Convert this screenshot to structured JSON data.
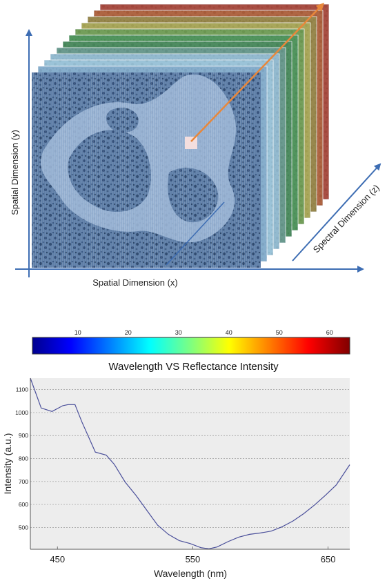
{
  "cube": {
    "label_y": "Spatial Dimension (y)",
    "label_x": "Spatial Dimension (x)",
    "label_z": "Spectral Dimension (z)",
    "layer_colors": [
      "#b8442e",
      "#c0602e",
      "#a48a3a",
      "#b9b04a",
      "#78a64a",
      "#4f9a4e",
      "#4a8f52",
      "#6ea08a",
      "#9ec7d8",
      "#a8d2e2",
      "#8fb8d4"
    ],
    "front_color": "#8faed0",
    "tissue_color": "#2e4a70",
    "arrow_orange": "#e8873a",
    "arrow_blue": "#3d6db3"
  },
  "colorbar": {
    "ticks": [
      "10",
      "20",
      "30",
      "40",
      "50",
      "60"
    ],
    "tick_values": [
      10,
      20,
      30,
      40,
      50,
      60
    ],
    "range": [
      1,
      64
    ]
  },
  "chart_data": {
    "type": "line",
    "title": "Wavelength VS Reflectance Intensity",
    "xlabel": "Wavelength (nm)",
    "ylabel": "Intensity (a.u.)",
    "xlim": [
      430,
      666
    ],
    "ylim": [
      405,
      1150
    ],
    "xticks": [
      450,
      550,
      650
    ],
    "yticks": [
      500,
      600,
      700,
      800,
      900,
      1000,
      1100
    ],
    "grid": "horizontal",
    "line_color": "#4a4f9a",
    "series": [
      {
        "x": [
          430,
          438,
          446,
          454,
          458,
          463,
          468,
          478,
          486,
          492,
          500,
          508,
          516,
          524,
          532,
          540,
          548,
          556,
          562,
          568,
          576,
          584,
          592,
          600,
          608,
          616,
          624,
          632,
          640,
          648,
          656,
          666
        ],
        "y": [
          1150,
          1020,
          1005,
          1030,
          1035,
          1035,
          960,
          828,
          815,
          775,
          698,
          640,
          575,
          510,
          470,
          443,
          430,
          412,
          407,
          415,
          438,
          458,
          470,
          476,
          484,
          503,
          528,
          560,
          598,
          640,
          685,
          773
        ]
      }
    ]
  }
}
